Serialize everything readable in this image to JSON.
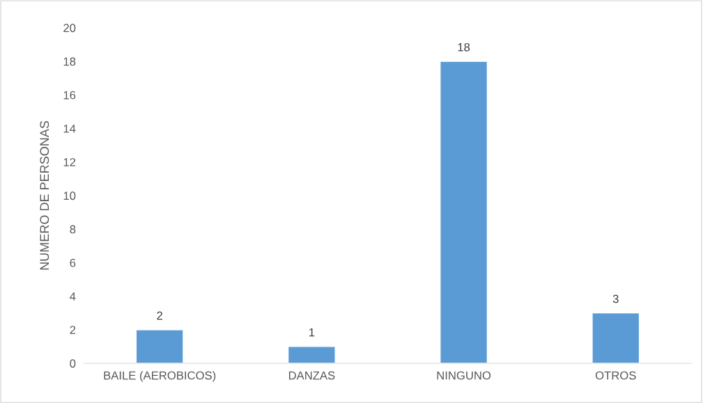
{
  "chart_data": {
    "type": "bar",
    "ylabel": "NUMERO DE PERSONAS",
    "categories": [
      "BAILE (AEROBICOS)",
      "DANZAS",
      "NINGUNO",
      "OTROS"
    ],
    "values": [
      2,
      1,
      18,
      3
    ],
    "color": "#5b9bd5",
    "ylim": [
      0,
      20
    ],
    "yticks": [
      0,
      2,
      4,
      6,
      8,
      10,
      12,
      14,
      16,
      18,
      20
    ],
    "data_labels": true,
    "grid": false
  }
}
